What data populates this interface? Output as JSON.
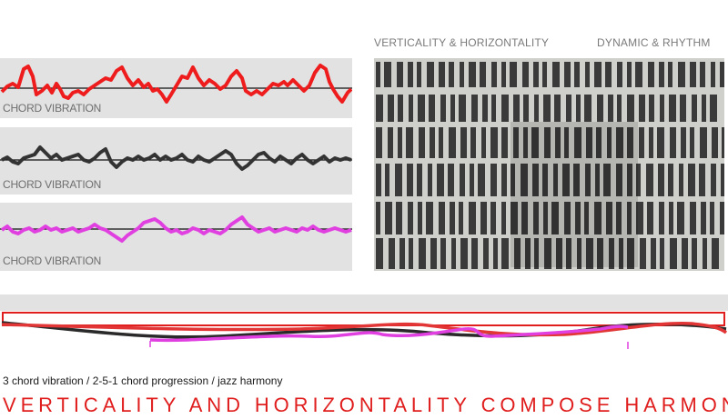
{
  "header": {
    "left_title": "VERTICALITY & HORIZONTALITY",
    "right_title": "DYNAMIC & RHYTHM"
  },
  "vibrations": [
    {
      "label": "CHORD VIBRATION",
      "color": "#ee1c1c"
    },
    {
      "label": "CHORD VIBRATION",
      "color": "#333333"
    },
    {
      "label": "CHORD VIBRATION",
      "color": "#e040e0"
    }
  ],
  "caption": "3 chord vibration / 2-5-1 chord progression / jazz harmony",
  "headline": "VERTICALITY AND HORIZONTALITY COMPOSE HARMONY",
  "colors": {
    "accent_red": "#e01e1e",
    "panel_bg": "#e2e2e2",
    "score_bg": "#cfcfcb",
    "block_dark": "#3a3a3a"
  }
}
